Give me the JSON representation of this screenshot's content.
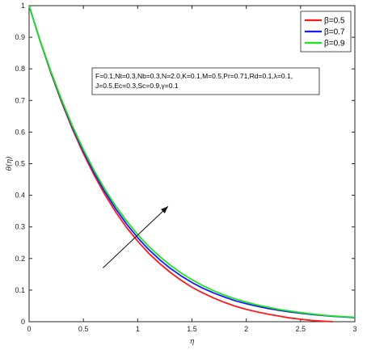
{
  "chart_data": {
    "type": "line",
    "xlabel": "η",
    "ylabel": "θ(η)",
    "xlim": [
      0,
      3
    ],
    "ylim": [
      0,
      1
    ],
    "x_ticks": [
      "0",
      "0.5",
      "1",
      "1.5",
      "2",
      "2.5",
      "3"
    ],
    "y_ticks": [
      "0",
      "0.1",
      "0.2",
      "0.3",
      "0.4",
      "0.5",
      "0.6",
      "0.7",
      "0.8",
      "0.9",
      "1"
    ],
    "grid": false,
    "legend_position": "top-right",
    "series": [
      {
        "name": "β=0.5",
        "color": "#ff1a1a",
        "x": [
          0,
          0.1,
          0.2,
          0.3,
          0.4,
          0.5,
          0.6,
          0.7,
          0.8,
          0.9,
          1.0,
          1.1,
          1.2,
          1.3,
          1.4,
          1.5,
          1.6,
          1.7,
          1.8,
          1.9,
          2.0,
          2.1,
          2.2,
          2.3,
          2.4,
          2.5,
          2.6,
          2.7,
          2.8
        ],
        "y": [
          1.0,
          0.89,
          0.788,
          0.694,
          0.609,
          0.532,
          0.463,
          0.401,
          0.346,
          0.297,
          0.255,
          0.217,
          0.185,
          0.156,
          0.131,
          0.109,
          0.091,
          0.075,
          0.061,
          0.049,
          0.039,
          0.031,
          0.024,
          0.018,
          0.012,
          0.008,
          0.004,
          0.002,
          0.0
        ]
      },
      {
        "name": "β=0.7",
        "color": "#1a1aff",
        "x": [
          0,
          0.1,
          0.2,
          0.3,
          0.4,
          0.5,
          0.6,
          0.7,
          0.8,
          0.9,
          1.0,
          1.1,
          1.2,
          1.3,
          1.4,
          1.5,
          1.6,
          1.7,
          1.8,
          1.9,
          2.0,
          2.1,
          2.2,
          2.3,
          2.4,
          2.5,
          2.6,
          2.7,
          2.8,
          2.9,
          3.0
        ],
        "y": [
          1.0,
          0.891,
          0.79,
          0.698,
          0.614,
          0.539,
          0.471,
          0.41,
          0.356,
          0.308,
          0.266,
          0.229,
          0.197,
          0.169,
          0.145,
          0.124,
          0.106,
          0.091,
          0.078,
          0.066,
          0.057,
          0.049,
          0.042,
          0.036,
          0.031,
          0.027,
          0.023,
          0.02,
          0.017,
          0.015,
          0.013
        ]
      },
      {
        "name": "β=0.9",
        "color": "#1ee61e",
        "x": [
          0,
          0.1,
          0.2,
          0.3,
          0.4,
          0.5,
          0.6,
          0.7,
          0.8,
          0.9,
          1.0,
          1.1,
          1.2,
          1.3,
          1.4,
          1.5,
          1.6,
          1.7,
          1.8,
          1.9,
          2.0,
          2.1,
          2.2,
          2.3,
          2.4,
          2.5,
          2.6,
          2.7,
          2.8,
          2.9,
          3.0
        ],
        "y": [
          1.0,
          0.892,
          0.793,
          0.702,
          0.619,
          0.545,
          0.478,
          0.418,
          0.365,
          0.318,
          0.276,
          0.239,
          0.207,
          0.179,
          0.154,
          0.133,
          0.114,
          0.098,
          0.084,
          0.072,
          0.062,
          0.053,
          0.046,
          0.039,
          0.034,
          0.029,
          0.025,
          0.021,
          0.018,
          0.016,
          0.014
        ]
      }
    ],
    "annotation": "F=0.1,Nt=0.3,Nb=0.3,N=2.0,K=0.1,M=0.5,Pr=0.71,Rd=0.1,λ=0.1, J=0.5,Ec=0.3,Sc=0.9,γ=0.1",
    "annotation_lines": [
      "F=0.1,Nt=0.3,Nb=0.3,N=2.0,K=0.1,M=0.5,Pr=0.71,Rd=0.1,λ=0.1,",
      "J=0.5,Ec=0.3,Sc=0.9,γ=0.1"
    ],
    "arrow": {
      "from": [
        0.68,
        0.17
      ],
      "to": [
        1.28,
        0.365
      ]
    }
  }
}
